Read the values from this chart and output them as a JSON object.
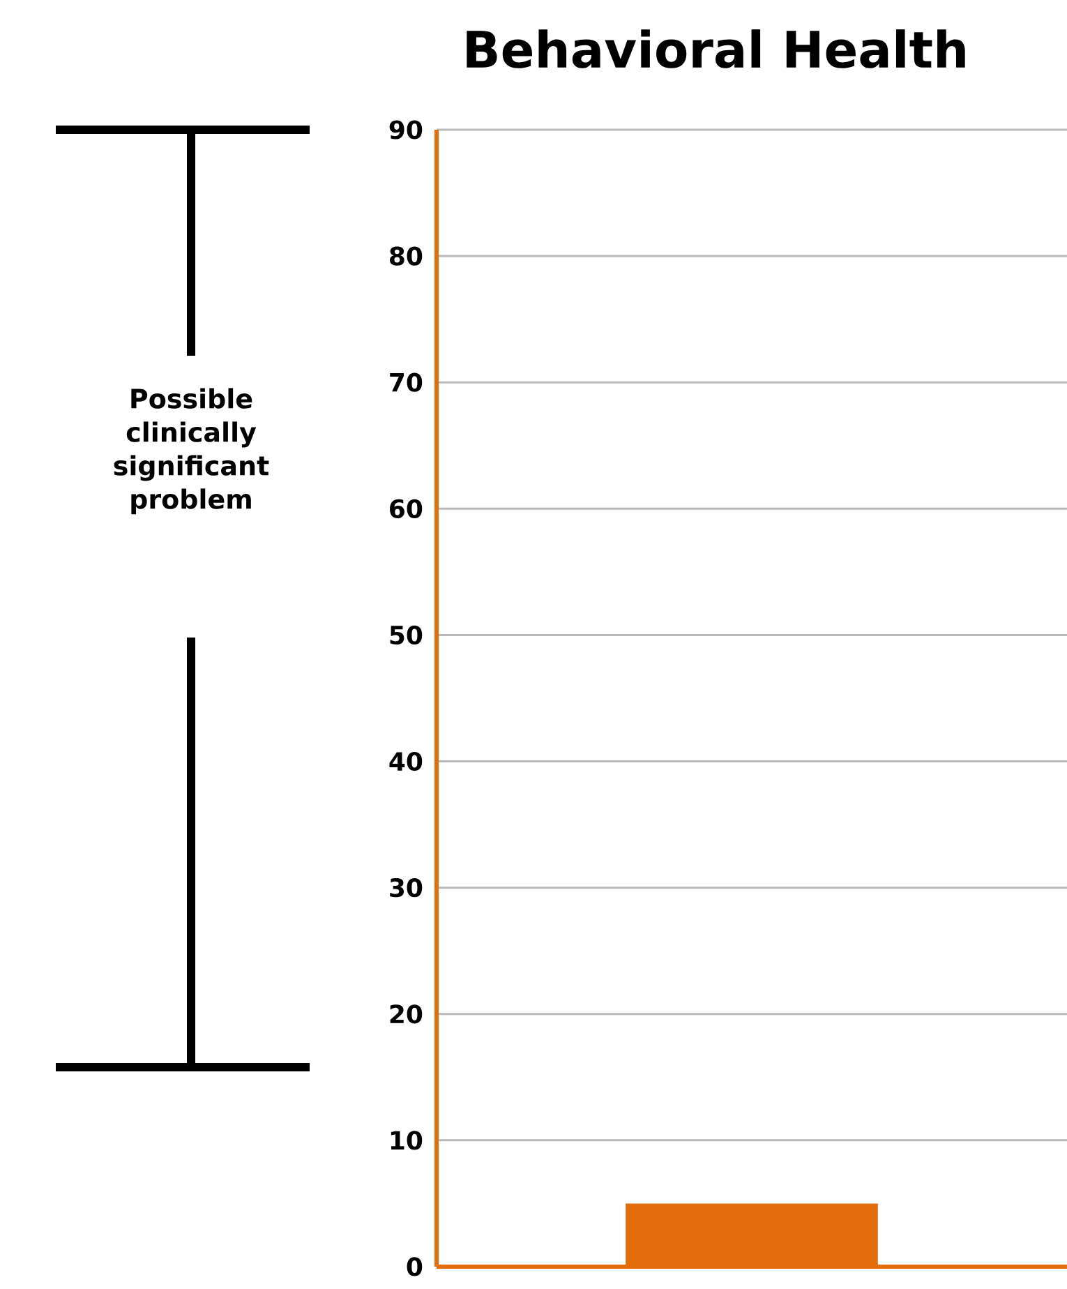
{
  "chart_data": {
    "type": "bar",
    "title": "Behavioral Health",
    "categories": [
      null
    ],
    "values": [
      5
    ],
    "color": "#e46c0a",
    "ylim": [
      0,
      90
    ],
    "yticks": [
      0,
      10,
      20,
      30,
      40,
      50,
      60,
      70,
      80,
      90
    ],
    "grid": "y",
    "annotations": [
      "Possible clinically significant problem"
    ]
  }
}
